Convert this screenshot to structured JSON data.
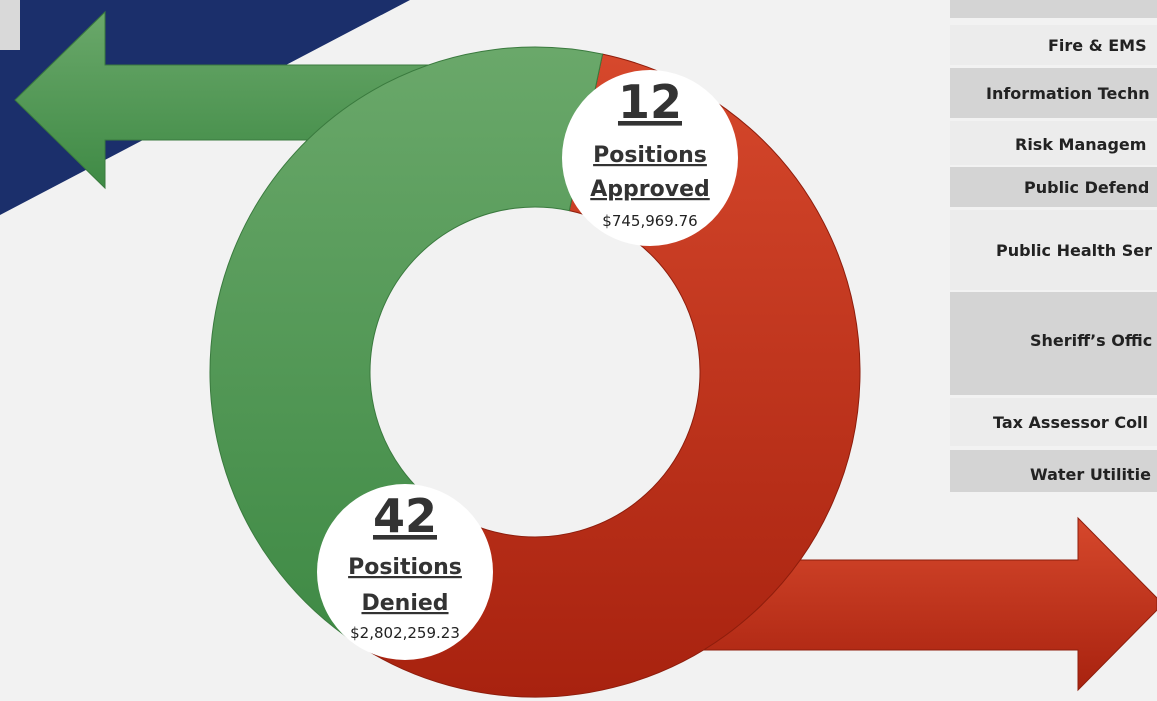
{
  "approved": {
    "count": "12",
    "line1": "Positions",
    "line2": "Approved",
    "amount": "$745,969.76"
  },
  "denied": {
    "count": "42",
    "line1": "Positions",
    "line2": "Denied",
    "amount": "$2,802,259.23"
  },
  "departments": [
    "Fire & EMS",
    "Information Techn",
    "Risk Managem",
    "Public Defend",
    "Public Health Ser",
    "Sheriff’s Offic",
    "Tax Assessor Coll",
    "Water Utilitie"
  ]
}
